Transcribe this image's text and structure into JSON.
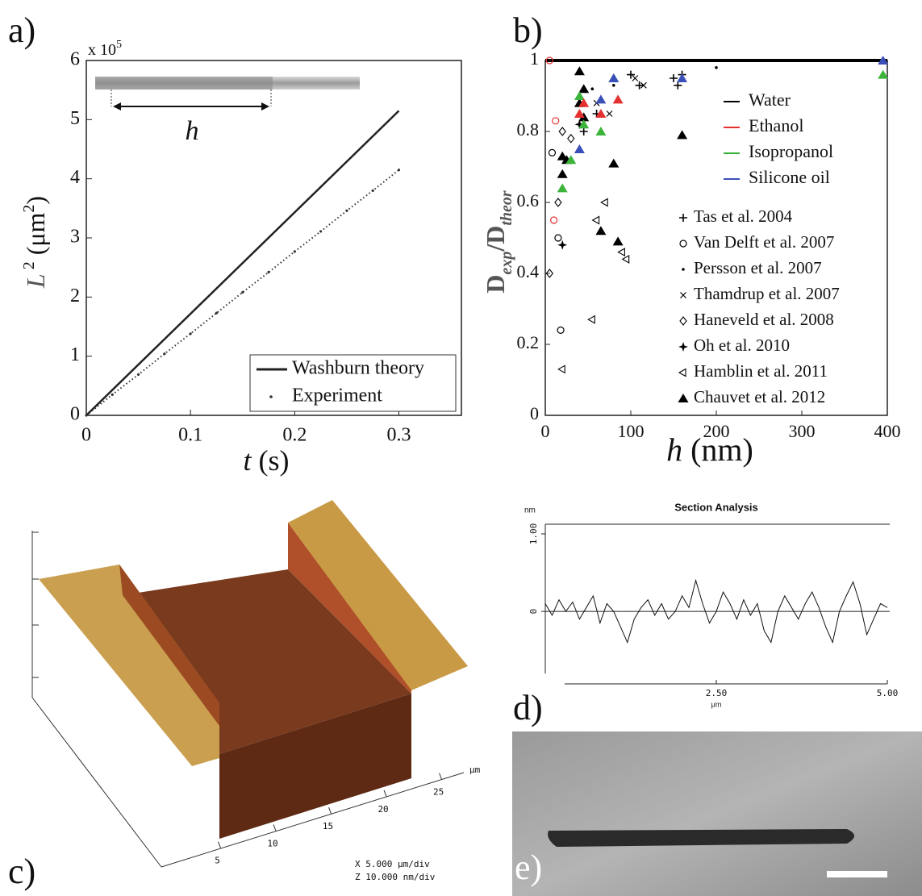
{
  "chart_data": [
    {
      "type": "line",
      "label": "a)",
      "xlabel": [
        "t",
        " (s)"
      ],
      "ylabel": [
        "L",
        " 2",
        " (μm",
        "2",
        ")"
      ],
      "y_multiplier": [
        "x 10",
        "5"
      ],
      "annotation": "h",
      "xlim": [
        0,
        0.36
      ],
      "ylim": [
        0,
        6
      ],
      "xticks": [
        0,
        0.1,
        0.2,
        0.3
      ],
      "yticks": [
        0,
        1,
        2,
        3,
        4,
        5,
        6
      ],
      "legend": "lower right",
      "series": [
        {
          "name": "Washburn theory",
          "color": "#222222",
          "style": "solid",
          "x": [
            0,
            0.3
          ],
          "values": [
            0,
            5.15
          ]
        },
        {
          "name": "Experiment",
          "color": "#333333",
          "style": "dotted",
          "x": [
            0,
            0.025,
            0.05,
            0.075,
            0.1,
            0.125,
            0.15,
            0.175,
            0.2,
            0.225,
            0.25,
            0.275,
            0.3
          ],
          "values": [
            0,
            0.35,
            0.69,
            1.04,
            1.38,
            1.73,
            2.08,
            2.42,
            2.77,
            3.11,
            3.46,
            3.8,
            4.15
          ]
        }
      ]
    },
    {
      "type": "scatter",
      "label": "b)",
      "xlabel": [
        "h",
        " (nm)"
      ],
      "ylabel": [
        "D",
        "exp",
        "/D",
        "theor"
      ],
      "xlim": [
        0,
        400
      ],
      "ylim": [
        0,
        1
      ],
      "xticks": [
        0,
        100,
        200,
        300,
        400
      ],
      "yticks": [
        0,
        0.2,
        0.4,
        0.6,
        0.8,
        1
      ],
      "series_lines": [
        {
          "name": "Water",
          "color": "#000000",
          "x": [
            0,
            400
          ],
          "values": [
            1,
            1
          ]
        },
        {
          "name": "Ethanol",
          "color": "#e53030"
        },
        {
          "name": "Isopropanol",
          "color": "#3cb43c"
        },
        {
          "name": "Silicone oil",
          "color": "#3a4fb8"
        }
      ],
      "series": [
        {
          "name": "Tas et al. 2004",
          "marker": "plus",
          "x": [
            150,
            155,
            160,
            100,
            110,
            45,
            60
          ],
          "values": [
            0.95,
            0.93,
            0.96,
            0.96,
            0.93,
            0.8,
            0.85
          ],
          "colors": [
            "#000000",
            "#000000",
            "#000000",
            "#000000",
            "#000000",
            "#000000",
            "#000000"
          ]
        },
        {
          "name": "Van Delft et al. 2007",
          "marker": "circle",
          "x": [
            10,
            12,
            5,
            15,
            18,
            8
          ],
          "values": [
            0.55,
            0.83,
            1,
            0.5,
            0.24,
            0.74
          ],
          "colors": [
            "#e53030",
            "#e53030",
            "#e53030",
            "#000000",
            "#000000",
            "#000000"
          ]
        },
        {
          "name": "Persson et al. 2007",
          "marker": "dot",
          "x": [
            200,
            80,
            55
          ],
          "values": [
            0.98,
            0.93,
            0.92
          ],
          "colors": [
            "#000000",
            "#000000",
            "#000000"
          ]
        },
        {
          "name": "Thamdrup et al. 2007",
          "marker": "cross",
          "x": [
            105,
            115,
            60,
            75
          ],
          "values": [
            0.95,
            0.93,
            0.88,
            0.85
          ],
          "colors": [
            "#000000",
            "#000000",
            "#000000",
            "#000000"
          ]
        },
        {
          "name": "Haneveld et al. 2008",
          "marker": "diamond",
          "x": [
            5,
            15,
            20,
            30
          ],
          "values": [
            0.4,
            0.6,
            0.8,
            0.78
          ],
          "colors": [
            "#000000",
            "#000000",
            "#000000",
            "#000000"
          ]
        },
        {
          "name": "Oh et al. 2010",
          "marker": "star",
          "x": [
            20,
            40
          ],
          "values": [
            0.48,
            0.82
          ],
          "colors": [
            "#000000",
            "#000000"
          ]
        },
        {
          "name": "Hamblin et al. 2011",
          "marker": "ltri",
          "x": [
            20,
            55,
            70,
            60,
            90,
            95
          ],
          "values": [
            0.13,
            0.27,
            0.6,
            0.55,
            0.46,
            0.44
          ],
          "colors": [
            "#000000",
            "#000000",
            "#000000",
            "#000000",
            "#000000",
            "#000000"
          ]
        },
        {
          "name": "Chauvet et al. 2012",
          "marker": "tri",
          "x": [
            20,
            20,
            25,
            40,
            45,
            40,
            45,
            65,
            80,
            85,
            160,
            20,
            30,
            40,
            45,
            65,
            80,
            395,
            40,
            65,
            85,
            45,
            40,
            65,
            80,
            160,
            395
          ],
          "values": [
            0.73,
            0.68,
            0.72,
            0.97,
            0.92,
            0.88,
            0.84,
            0.52,
            0.71,
            0.49,
            0.79,
            0.64,
            0.72,
            0.9,
            0.82,
            0.8,
            0.95,
            0.96,
            0.85,
            0.85,
            0.89,
            0.88,
            0.75,
            0.89,
            0.95,
            0.95,
            1
          ],
          "colors": [
            "#000000",
            "#000000",
            "#000000",
            "#000000",
            "#000000",
            "#000000",
            "#000000",
            "#000000",
            "#000000",
            "#000000",
            "#000000",
            "#3cb43c",
            "#3cb43c",
            "#3cb43c",
            "#3cb43c",
            "#3cb43c",
            "#3cb43c",
            "#3cb43c",
            "#e53030",
            "#e53030",
            "#e53030",
            "#e53030",
            "#3a4fb8",
            "#3a4fb8",
            "#3a4fb8",
            "#3a4fb8",
            "#3a4fb8"
          ]
        }
      ]
    },
    {
      "type": "line",
      "label": "d)",
      "title": "Section Analysis",
      "ylabel": "nm",
      "xlabel": "μm",
      "zero_line": true,
      "xlim": [
        0,
        5
      ],
      "ylim": [
        -0.8,
        1.125
      ],
      "xticks": [
        {
          "value": 2.5,
          "label": "2.50"
        },
        {
          "value": 5,
          "label": "5.00"
        }
      ],
      "yticks": [
        0,
        {
          "value": 1,
          "label": "1.00"
        }
      ],
      "series": [
        {
          "color": "#111111",
          "x": [
            0,
            0.1,
            0.2,
            0.3,
            0.4,
            0.5,
            0.6,
            0.7,
            0.8,
            0.9,
            1,
            1.1,
            1.2,
            1.3,
            1.4,
            1.5,
            1.6,
            1.7,
            1.8,
            1.9,
            2,
            2.1,
            2.2,
            2.3,
            2.4,
            2.5,
            2.6,
            2.7,
            2.8,
            2.9,
            3,
            3.1,
            3.2,
            3.3,
            3.4,
            3.5,
            3.6,
            3.7,
            3.8,
            3.9,
            4,
            4.1,
            4.2,
            4.3,
            4.4,
            4.5,
            4.6,
            4.7,
            4.8,
            4.9,
            5
          ],
          "values": [
            0.1,
            -0.05,
            0.15,
            0,
            0.12,
            -0.1,
            0.05,
            0.2,
            -0.15,
            0.1,
            0,
            -0.2,
            -0.4,
            -0.1,
            0.05,
            0.15,
            -0.05,
            0.1,
            -0.1,
            0,
            0.2,
            0.05,
            0.4,
            0.1,
            -0.15,
            0,
            0.25,
            0.1,
            -0.1,
            0.15,
            -0.05,
            0.1,
            -0.25,
            -0.4,
            0,
            0.2,
            0.05,
            -0.1,
            0.1,
            0.25,
            0.05,
            -0.2,
            -0.4,
            0,
            0.2,
            0.38,
            0.1,
            -0.3,
            -0.1,
            0.1,
            0.05
          ]
        }
      ]
    }
  ],
  "panel_c": {
    "label": "c)",
    "x_ticks": [
      5,
      10,
      15,
      20,
      25
    ],
    "unit": "μm",
    "scale_x": "X 5.000 μm/div",
    "scale_z": "Z 10.000 nm/div"
  },
  "panel_e": {
    "label": "e)"
  }
}
